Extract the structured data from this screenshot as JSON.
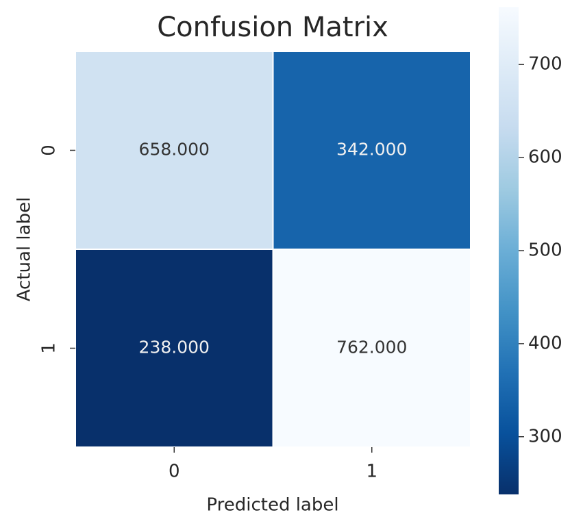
{
  "chart_data": {
    "type": "heatmap",
    "title": "Confusion Matrix",
    "x_label": "Predicted label",
    "y_label": "Actual label",
    "x_categories": [
      "0",
      "1"
    ],
    "y_categories": [
      "0",
      "1"
    ],
    "values": [
      [
        658,
        342
      ],
      [
        238,
        762
      ]
    ],
    "value_labels": [
      [
        "658.000",
        "342.000"
      ],
      [
        "238.000",
        "762.000"
      ]
    ],
    "colormap": "Blues",
    "zlim": [
      238,
      762
    ],
    "zticks": [
      300,
      400,
      500,
      600,
      700
    ]
  }
}
